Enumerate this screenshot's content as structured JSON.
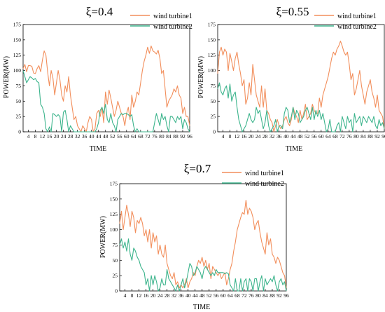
{
  "chart_data": [
    {
      "type": "line",
      "title": "ξ=0.4",
      "xlabel": "TIME",
      "ylabel": "POWER(MW)",
      "xlim": [
        1,
        96
      ],
      "ylim": [
        0,
        175
      ],
      "xticks": [
        4,
        8,
        12,
        16,
        20,
        24,
        28,
        32,
        36,
        40,
        44,
        48,
        52,
        56,
        60,
        64,
        68,
        72,
        76,
        80,
        84,
        88,
        92,
        96
      ],
      "yticks": [
        0,
        25,
        50,
        75,
        100,
        125,
        150,
        175
      ],
      "legend": "top-right",
      "series": [
        {
          "name": "wind turbine1",
          "color": "#F28E5B",
          "values": [
            103,
            110,
            98,
            108,
            108,
            107,
            96,
            95,
            103,
            108,
            98,
            117,
            132,
            125,
            97,
            75,
            100,
            88,
            60,
            80,
            100,
            85,
            60,
            50,
            75,
            65,
            90,
            60,
            40,
            20,
            25,
            10,
            5,
            0,
            10,
            5,
            0,
            15,
            25,
            20,
            0,
            5,
            30,
            35,
            25,
            40,
            15,
            65,
            45,
            68,
            55,
            40,
            25,
            35,
            50,
            40,
            30,
            25,
            10,
            30,
            40,
            20,
            60,
            40,
            50,
            65,
            60,
            80,
            100,
            115,
            125,
            138,
            128,
            140,
            132,
            130,
            127,
            133,
            120,
            95,
            100,
            70,
            40,
            50,
            55,
            60,
            70,
            65,
            75,
            60,
            55,
            30,
            40,
            25,
            25,
            10
          ]
        },
        {
          "name": "wind turbine2",
          "color": "#3CB48C",
          "values": [
            100,
            90,
            80,
            85,
            90,
            88,
            85,
            87,
            82,
            80,
            45,
            40,
            30,
            5,
            0,
            8,
            0,
            30,
            28,
            25,
            28,
            25,
            0,
            32,
            35,
            20,
            0,
            10,
            5,
            0,
            0,
            0,
            0,
            0,
            0,
            0,
            0,
            0,
            0,
            0,
            0,
            0,
            5,
            15,
            35,
            40,
            30,
            45,
            20,
            15,
            30,
            15,
            10,
            0,
            20,
            25,
            30,
            28,
            30,
            30,
            28,
            25,
            28,
            10,
            0,
            5,
            0,
            0,
            0,
            0,
            0,
            0,
            0,
            0,
            0,
            15,
            30,
            20,
            10,
            30,
            20,
            25,
            10,
            0,
            25,
            25,
            20,
            15,
            25,
            20,
            25,
            5,
            20,
            15,
            5,
            0
          ]
        }
      ]
    },
    {
      "type": "line",
      "title": "ξ=0.55",
      "xlabel": "TIME",
      "ylabel": "POWER(MW)",
      "xlim": [
        1,
        96
      ],
      "ylim": [
        0,
        175
      ],
      "xticks": [
        4,
        8,
        12,
        16,
        20,
        24,
        28,
        32,
        36,
        40,
        44,
        48,
        52,
        56,
        60,
        64,
        68,
        72,
        76,
        80,
        84,
        88,
        92,
        96
      ],
      "yticks": [
        0,
        25,
        50,
        75,
        100,
        125,
        150,
        175
      ],
      "legend": "top-right",
      "series": [
        {
          "name": "wind turbine1",
          "color": "#F28E5B",
          "values": [
            95,
            130,
            138,
            125,
            135,
            130,
            100,
            128,
            115,
            100,
            120,
            130,
            110,
            95,
            75,
            85,
            45,
            55,
            80,
            60,
            110,
            85,
            60,
            50,
            40,
            75,
            40,
            70,
            35,
            30,
            20,
            15,
            0,
            10,
            20,
            10,
            5,
            10,
            20,
            25,
            15,
            10,
            20,
            40,
            30,
            25,
            15,
            35,
            20,
            30,
            45,
            20,
            25,
            30,
            45,
            35,
            30,
            30,
            55,
            40,
            60,
            70,
            80,
            90,
            105,
            120,
            130,
            125,
            135,
            140,
            148,
            140,
            130,
            125,
            130,
            110,
            85,
            95,
            60,
            70,
            85,
            100,
            75,
            60,
            45,
            65,
            75,
            85,
            65,
            55,
            40,
            60,
            35,
            30,
            25,
            5
          ]
        },
        {
          "name": "wind turbine2",
          "color": "#3CB48C",
          "values": [
            70,
            80,
            65,
            60,
            70,
            75,
            55,
            78,
            50,
            60,
            65,
            40,
            20,
            10,
            0,
            5,
            10,
            20,
            30,
            20,
            15,
            20,
            40,
            30,
            35,
            20,
            5,
            15,
            35,
            10,
            0,
            5,
            10,
            20,
            0,
            10,
            10,
            5,
            30,
            40,
            35,
            15,
            25,
            40,
            20,
            35,
            30,
            15,
            20,
            25,
            35,
            40,
            30,
            20,
            40,
            20,
            35,
            25,
            35,
            20,
            30,
            15,
            0,
            5,
            20,
            0,
            0,
            0,
            10,
            15,
            0,
            25,
            15,
            5,
            25,
            15,
            20,
            0,
            30,
            15,
            20,
            25,
            10,
            25,
            20,
            15,
            25,
            20,
            15,
            25,
            10,
            5,
            20,
            10,
            15,
            5
          ]
        }
      ]
    },
    {
      "type": "line",
      "title": "ξ=0.7",
      "xlabel": "TIME",
      "ylabel": "POWER(MW)",
      "xlim": [
        1,
        96
      ],
      "ylim": [
        0,
        175
      ],
      "xticks": [
        4,
        8,
        12,
        16,
        20,
        24,
        28,
        32,
        36,
        40,
        44,
        48,
        52,
        56,
        60,
        64,
        68,
        72,
        76,
        80,
        84,
        88,
        92,
        96
      ],
      "yticks": [
        0,
        25,
        50,
        75,
        100,
        125,
        150,
        175
      ],
      "legend": "top-right",
      "series": [
        {
          "name": "wind turbine1",
          "color": "#F28E5B",
          "values": [
            110,
            130,
            100,
            120,
            140,
            125,
            105,
            130,
            120,
            95,
            115,
            110,
            120,
            110,
            90,
            100,
            80,
            100,
            70,
            95,
            80,
            90,
            60,
            75,
            60,
            55,
            75,
            45,
            35,
            25,
            20,
            30,
            10,
            15,
            5,
            10,
            5,
            10,
            20,
            5,
            15,
            20,
            30,
            25,
            40,
            50,
            45,
            55,
            40,
            50,
            35,
            45,
            20,
            40,
            35,
            30,
            25,
            30,
            20,
            25,
            30,
            10,
            20,
            35,
            45,
            65,
            80,
            100,
            110,
            120,
            128,
            125,
            148,
            125,
            135,
            130,
            120,
            100,
            110,
            115,
            95,
            80,
            70,
            60,
            95,
            75,
            85,
            60,
            55,
            45,
            55,
            50,
            40,
            30,
            25,
            5
          ]
        },
        {
          "name": "wind turbine2",
          "color": "#3CB48C",
          "values": [
            75,
            85,
            70,
            80,
            65,
            85,
            60,
            50,
            70,
            65,
            55,
            50,
            40,
            35,
            30,
            10,
            20,
            0,
            25,
            10,
            25,
            15,
            0,
            5,
            20,
            10,
            10,
            35,
            20,
            15,
            10,
            5,
            0,
            10,
            0,
            10,
            20,
            5,
            15,
            30,
            45,
            40,
            25,
            30,
            40,
            35,
            30,
            20,
            35,
            40,
            35,
            30,
            25,
            30,
            25,
            35,
            30,
            30,
            30,
            30,
            28,
            30,
            28,
            10,
            5,
            0,
            20,
            0,
            0,
            20,
            0,
            15,
            20,
            0,
            20,
            15,
            0,
            20,
            20,
            0,
            15,
            25,
            0,
            20,
            10,
            15,
            20,
            15,
            25,
            10,
            0,
            15,
            20,
            10,
            15,
            0
          ]
        }
      ]
    }
  ]
}
